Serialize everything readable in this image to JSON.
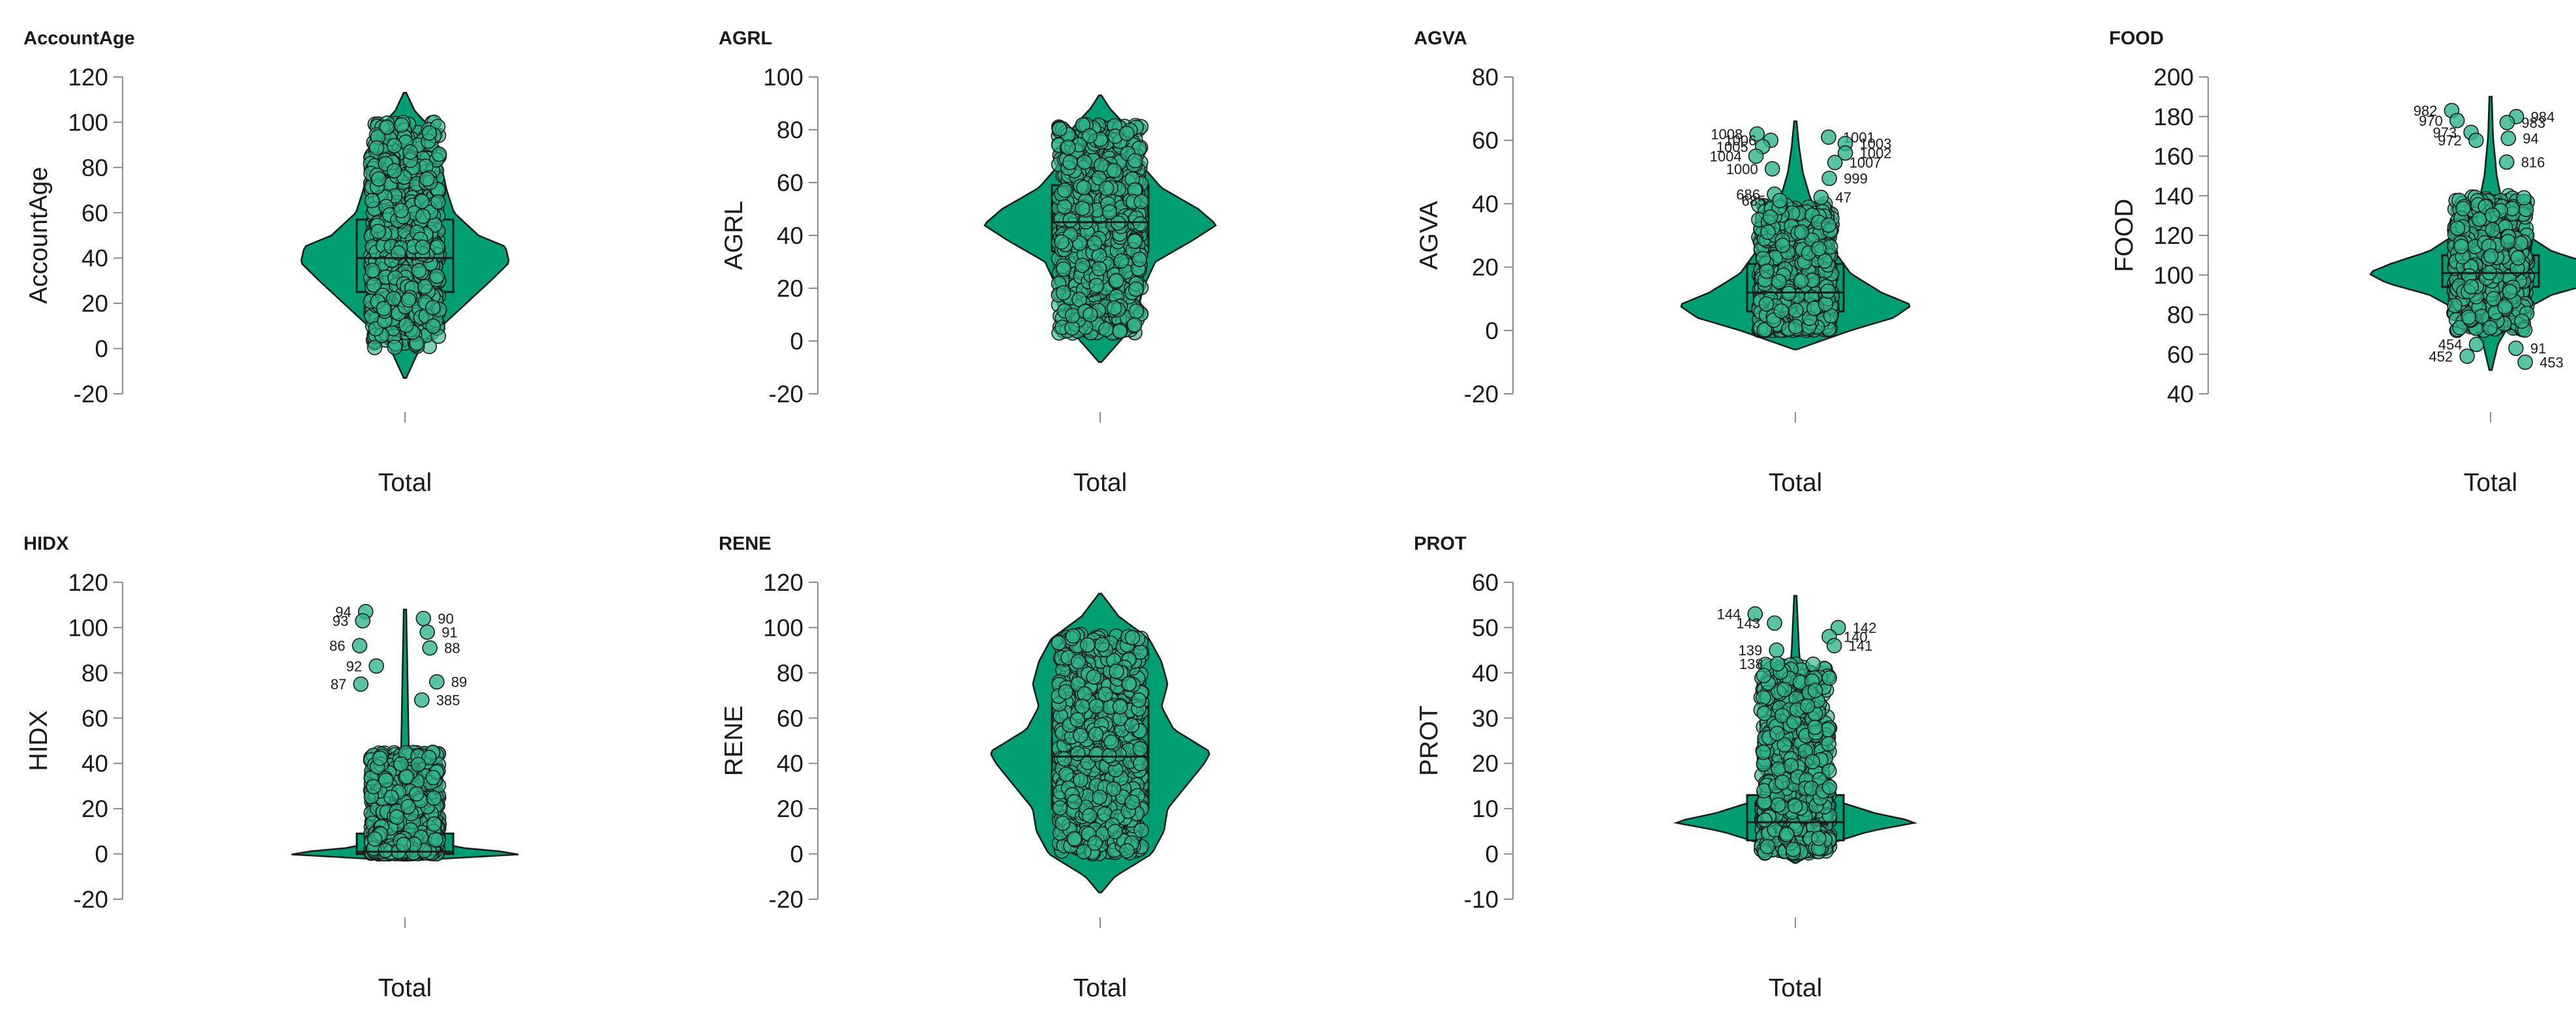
{
  "colors": {
    "fill": "#009E73",
    "stroke": "#1a1a1a",
    "point": "#2fb58c",
    "axis": "#8a8a8a"
  },
  "chart_data": [
    {
      "type": "violin",
      "title": "AccountAge",
      "ylabel": "AccountAge",
      "xlabel": "Total",
      "ylim": [
        -20,
        120
      ],
      "yticks": [
        -20,
        0,
        20,
        40,
        60,
        80,
        100,
        120
      ],
      "violin_extent": [
        -13,
        113
      ],
      "density": [
        [
          -13,
          0.01
        ],
        [
          0,
          0.12
        ],
        [
          10,
          0.3
        ],
        [
          20,
          0.5
        ],
        [
          30,
          0.7
        ],
        [
          38,
          0.85
        ],
        [
          45,
          0.82
        ],
        [
          50,
          0.6
        ],
        [
          60,
          0.4
        ],
        [
          70,
          0.34
        ],
        [
          80,
          0.3
        ],
        [
          90,
          0.25
        ],
        [
          98,
          0.2
        ],
        [
          105,
          0.08
        ],
        [
          113,
          0.01
        ]
      ],
      "box": {
        "q1": 25,
        "median": 40,
        "q3": 57,
        "whisker_low": 0,
        "whisker_high": 100
      },
      "points_range": [
        0,
        100
      ],
      "point_width": 0.28,
      "point_count": 950,
      "outliers": []
    },
    {
      "type": "violin",
      "title": "AGRL",
      "ylabel": "AGRL",
      "xlabel": "Total",
      "ylim": [
        -20,
        100
      ],
      "yticks": [
        -20,
        0,
        20,
        40,
        60,
        80,
        100
      ],
      "violin_extent": [
        -8,
        93
      ],
      "density": [
        [
          -8,
          0.01
        ],
        [
          2,
          0.2
        ],
        [
          10,
          0.3
        ],
        [
          20,
          0.35
        ],
        [
          30,
          0.45
        ],
        [
          38,
          0.75
        ],
        [
          44,
          0.95
        ],
        [
          50,
          0.8
        ],
        [
          58,
          0.5
        ],
        [
          66,
          0.35
        ],
        [
          76,
          0.3
        ],
        [
          82,
          0.2
        ],
        [
          88,
          0.08
        ],
        [
          93,
          0.01
        ]
      ],
      "box": {
        "q1": 34,
        "median": 45,
        "q3": 59,
        "whisker_low": 3,
        "whisker_high": 82
      },
      "points_range": [
        3,
        82
      ],
      "point_width": 0.34,
      "point_count": 950,
      "outliers": []
    },
    {
      "type": "violin",
      "title": "AGVA",
      "ylabel": "AGVA",
      "xlabel": "Total",
      "ylim": [
        -20,
        80
      ],
      "yticks": [
        -20,
        0,
        20,
        40,
        60,
        80
      ],
      "violin_extent": [
        -6,
        66
      ],
      "density": [
        [
          -6,
          0.01
        ],
        [
          0,
          0.45
        ],
        [
          4,
          0.8
        ],
        [
          8,
          0.95
        ],
        [
          12,
          0.7
        ],
        [
          18,
          0.45
        ],
        [
          26,
          0.3
        ],
        [
          34,
          0.22
        ],
        [
          42,
          0.12
        ],
        [
          50,
          0.06
        ],
        [
          58,
          0.03
        ],
        [
          66,
          0.01
        ]
      ],
      "box": {
        "q1": 6,
        "median": 12,
        "q3": 21,
        "whisker_low": 0,
        "whisker_high": 40
      },
      "points_range": [
        0,
        40
      ],
      "point_width": 0.3,
      "point_count": 900,
      "outliers": [
        {
          "id": "1008",
          "y": 62
        },
        {
          "id": "1001",
          "y": 61
        },
        {
          "id": "1006",
          "y": 60
        },
        {
          "id": "1003",
          "y": 59
        },
        {
          "id": "1005",
          "y": 58
        },
        {
          "id": "1002",
          "y": 56
        },
        {
          "id": "1004",
          "y": 55
        },
        {
          "id": "1007",
          "y": 53
        },
        {
          "id": "1000",
          "y": 51
        },
        {
          "id": "999",
          "y": 48
        },
        {
          "id": "686",
          "y": 43
        },
        {
          "id": "47",
          "y": 42
        },
        {
          "id": "685",
          "y": 41
        }
      ]
    },
    {
      "type": "violin",
      "title": "FOOD",
      "ylabel": "FOOD",
      "xlabel": "Total",
      "ylim": [
        40,
        200
      ],
      "yticks": [
        40,
        60,
        80,
        100,
        120,
        140,
        160,
        180,
        200
      ],
      "violin_extent": [
        52,
        190
      ],
      "density": [
        [
          52,
          0.01
        ],
        [
          65,
          0.06
        ],
        [
          80,
          0.2
        ],
        [
          90,
          0.5
        ],
        [
          96,
          0.85
        ],
        [
          101,
          1.0
        ],
        [
          106,
          0.8
        ],
        [
          112,
          0.5
        ],
        [
          122,
          0.25
        ],
        [
          135,
          0.1
        ],
        [
          150,
          0.05
        ],
        [
          170,
          0.02
        ],
        [
          190,
          0.01
        ]
      ],
      "box": {
        "q1": 94,
        "median": 101,
        "q3": 110,
        "whisker_low": 72,
        "whisker_high": 140
      },
      "points_range": [
        72,
        140
      ],
      "point_width": 0.3,
      "point_count": 950,
      "outliers": [
        {
          "id": "982",
          "y": 183
        },
        {
          "id": "984",
          "y": 180
        },
        {
          "id": "970",
          "y": 178
        },
        {
          "id": "983",
          "y": 177
        },
        {
          "id": "973",
          "y": 172
        },
        {
          "id": "94",
          "y": 169
        },
        {
          "id": "972",
          "y": 168
        },
        {
          "id": "816",
          "y": 157
        },
        {
          "id": "454",
          "y": 65
        },
        {
          "id": "91",
          "y": 63
        },
        {
          "id": "452",
          "y": 59
        },
        {
          "id": "453",
          "y": 56
        }
      ]
    },
    {
      "type": "violin",
      "title": "HIDX",
      "ylabel": "HIDX",
      "xlabel": "Total",
      "ylim": [
        -20,
        120
      ],
      "yticks": [
        -20,
        0,
        20,
        40,
        60,
        80,
        100,
        120
      ],
      "violin_extent": [
        -3,
        108
      ],
      "density": [
        [
          -3,
          0.01
        ],
        [
          0,
          1.0
        ],
        [
          1,
          0.8
        ],
        [
          3,
          0.4
        ],
        [
          8,
          0.15
        ],
        [
          15,
          0.07
        ],
        [
          30,
          0.04
        ],
        [
          50,
          0.03
        ],
        [
          80,
          0.02
        ],
        [
          108,
          0.01
        ]
      ],
      "box": {
        "q1": 0,
        "median": 1,
        "q3": 9,
        "whisker_low": 0,
        "whisker_high": 45
      },
      "points_range": [
        0,
        45
      ],
      "point_width": 0.28,
      "point_count": 850,
      "outliers": [
        {
          "id": "94",
          "y": 107
        },
        {
          "id": "90",
          "y": 104
        },
        {
          "id": "93",
          "y": 103
        },
        {
          "id": "91",
          "y": 98
        },
        {
          "id": "86",
          "y": 92
        },
        {
          "id": "88",
          "y": 91
        },
        {
          "id": "92",
          "y": 83
        },
        {
          "id": "89",
          "y": 76
        },
        {
          "id": "87",
          "y": 75
        },
        {
          "id": "385",
          "y": 68
        }
      ]
    },
    {
      "type": "violin",
      "title": "RENE",
      "ylabel": "RENE",
      "xlabel": "Total",
      "ylim": [
        -20,
        120
      ],
      "yticks": [
        -20,
        0,
        20,
        40,
        60,
        80,
        100,
        120
      ],
      "violin_extent": [
        -17,
        115
      ],
      "density": [
        [
          -17,
          0.01
        ],
        [
          -10,
          0.12
        ],
        [
          0,
          0.42
        ],
        [
          10,
          0.52
        ],
        [
          20,
          0.55
        ],
        [
          30,
          0.7
        ],
        [
          40,
          0.85
        ],
        [
          45,
          0.9
        ],
        [
          55,
          0.6
        ],
        [
          65,
          0.5
        ],
        [
          75,
          0.55
        ],
        [
          85,
          0.5
        ],
        [
          95,
          0.4
        ],
        [
          105,
          0.15
        ],
        [
          115,
          0.01
        ]
      ],
      "box": {
        "q1": 20,
        "median": 43,
        "q3": 67,
        "whisker_low": 0,
        "whisker_high": 97
      },
      "points_range": [
        0,
        97
      ],
      "point_width": 0.34,
      "point_count": 950,
      "outliers": []
    },
    {
      "type": "violin",
      "title": "PROT",
      "ylabel": "PROT",
      "xlabel": "Total",
      "ylim": [
        -10,
        60
      ],
      "yticks": [
        -10,
        0,
        10,
        20,
        30,
        40,
        50,
        60
      ],
      "violin_extent": [
        -2,
        57
      ],
      "density": [
        [
          -2,
          0.01
        ],
        [
          2,
          0.25
        ],
        [
          5,
          0.6
        ],
        [
          7,
          1.0
        ],
        [
          9,
          0.65
        ],
        [
          12,
          0.3
        ],
        [
          18,
          0.15
        ],
        [
          25,
          0.1
        ],
        [
          35,
          0.06
        ],
        [
          45,
          0.03
        ],
        [
          57,
          0.01
        ]
      ],
      "box": {
        "q1": 3,
        "median": 7,
        "q3": 13,
        "whisker_low": 0,
        "whisker_high": 42
      },
      "points_range": [
        0,
        42
      ],
      "point_width": 0.28,
      "point_count": 850,
      "outliers": [
        {
          "id": "144",
          "y": 53
        },
        {
          "id": "142",
          "y": 50
        },
        {
          "id": "143",
          "y": 51
        },
        {
          "id": "140",
          "y": 48
        },
        {
          "id": "139",
          "y": 45
        },
        {
          "id": "141",
          "y": 46
        },
        {
          "id": "138",
          "y": 42
        }
      ]
    }
  ]
}
